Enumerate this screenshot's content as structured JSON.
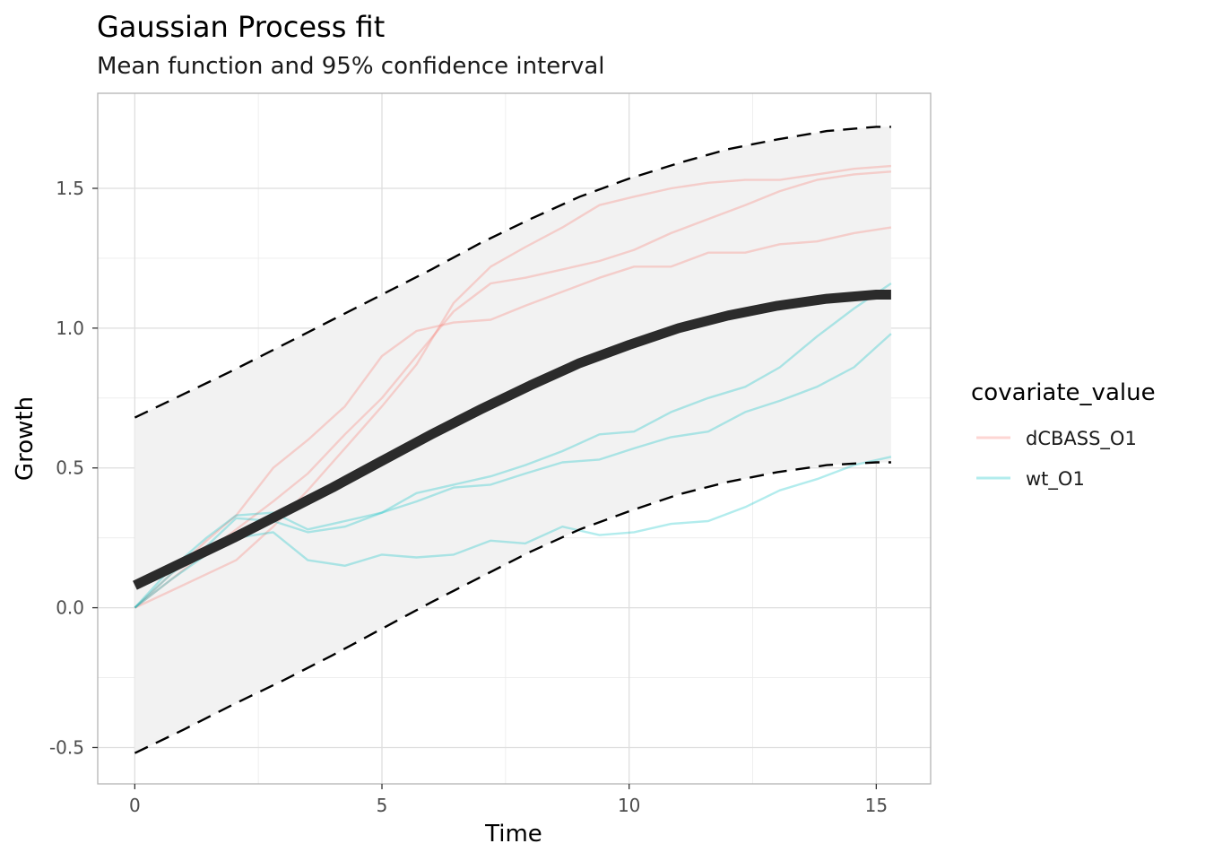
{
  "chart_data": {
    "type": "line",
    "title": "Gaussian Process fit",
    "subtitle": "Mean function and 95% confidence interval",
    "xlabel": "Time",
    "ylabel": "Growth",
    "xlim": [
      -0.75,
      16.1
    ],
    "ylim": [
      -0.63,
      1.84
    ],
    "x_ticks": [
      0,
      5,
      10,
      15
    ],
    "x_tick_labels": [
      "0",
      "5",
      "10",
      "15"
    ],
    "y_ticks": [
      -0.5,
      0.0,
      0.5,
      1.0,
      1.5
    ],
    "y_tick_labels": [
      "-0.5",
      "0.0",
      "0.5",
      "1.0",
      "1.5"
    ],
    "grid": true,
    "legend": {
      "title": "covariate_value",
      "position": "right",
      "entries": [
        {
          "label": "dCBASS_O1",
          "color": "#F8766D"
        },
        {
          "label": "wt_O1",
          "color": "#00BFC4"
        }
      ]
    },
    "colors": {
      "mean": "#2b2b2b",
      "ribbon": "#f2f2f2",
      "bounds": "#000000",
      "dCBASS_O1": "#F8766D",
      "wt_O1": "#00BFC4"
    },
    "mean": {
      "x": [
        0,
        1,
        2,
        3,
        4,
        5,
        6,
        7,
        8,
        9,
        10,
        11,
        12,
        13,
        14,
        15,
        15.3
      ],
      "y": [
        0.08,
        0.165,
        0.25,
        0.34,
        0.43,
        0.525,
        0.62,
        0.71,
        0.795,
        0.875,
        0.94,
        1.0,
        1.045,
        1.08,
        1.105,
        1.12,
        1.12
      ]
    },
    "upper": {
      "x": [
        0,
        1,
        2,
        3,
        4,
        5,
        6,
        7,
        8,
        9,
        10,
        11,
        12,
        13,
        14,
        15,
        15.3
      ],
      "y": [
        0.68,
        0.765,
        0.85,
        0.94,
        1.03,
        1.12,
        1.21,
        1.305,
        1.39,
        1.47,
        1.535,
        1.59,
        1.64,
        1.675,
        1.705,
        1.72,
        1.72
      ]
    },
    "lower": {
      "x": [
        0,
        1,
        2,
        3,
        4,
        5,
        6,
        7,
        8,
        9,
        10,
        11,
        12,
        13,
        14,
        15,
        15.3
      ],
      "y": [
        -0.52,
        -0.435,
        -0.345,
        -0.26,
        -0.17,
        -0.075,
        0.02,
        0.11,
        0.2,
        0.28,
        0.345,
        0.405,
        0.45,
        0.485,
        0.51,
        0.52,
        0.52
      ]
    },
    "series": [
      {
        "group": "dCBASS_O1",
        "x": [
          0,
          0.73,
          1.45,
          2.05,
          2.8,
          3.5,
          4.25,
          5,
          5.7,
          6.45,
          7.2,
          7.9,
          8.65,
          9.4,
          10.1,
          10.85,
          11.6,
          12.35,
          13.05,
          13.8,
          14.55,
          15.3
        ],
        "y": [
          0,
          0.12,
          0.24,
          0.33,
          0.5,
          0.6,
          0.72,
          0.9,
          0.99,
          1.02,
          1.03,
          1.08,
          1.13,
          1.18,
          1.22,
          1.22,
          1.27,
          1.27,
          1.3,
          1.31,
          1.34,
          1.36
        ]
      },
      {
        "group": "dCBASS_O1",
        "x": [
          0,
          0.73,
          1.45,
          2.05,
          2.8,
          3.5,
          4.25,
          5,
          5.7,
          6.45,
          7.2,
          7.9,
          8.65,
          9.4,
          10.1,
          10.85,
          11.6,
          12.35,
          13.05,
          13.8,
          14.55,
          15.3
        ],
        "y": [
          0,
          0.1,
          0.2,
          0.28,
          0.38,
          0.48,
          0.62,
          0.75,
          0.9,
          1.06,
          1.16,
          1.18,
          1.21,
          1.24,
          1.28,
          1.34,
          1.39,
          1.44,
          1.49,
          1.53,
          1.55,
          1.56
        ]
      },
      {
        "group": "dCBASS_O1",
        "x": [
          0,
          0.73,
          1.45,
          2.05,
          2.8,
          3.5,
          4.25,
          5,
          5.7,
          6.45,
          7.2,
          7.9,
          8.65,
          9.4,
          10.1,
          10.85,
          11.6,
          12.35,
          13.05,
          13.8,
          14.55,
          15.3
        ],
        "y": [
          0,
          0.06,
          0.12,
          0.17,
          0.29,
          0.42,
          0.57,
          0.72,
          0.87,
          1.09,
          1.22,
          1.29,
          1.36,
          1.44,
          1.47,
          1.5,
          1.52,
          1.53,
          1.53,
          1.55,
          1.57,
          1.58
        ]
      },
      {
        "group": "wt_O1",
        "x": [
          0,
          0.73,
          1.45,
          2.05,
          2.8,
          3.5,
          4.25,
          5,
          5.7,
          6.45,
          7.2,
          7.9,
          8.65,
          9.4,
          10.1,
          10.85,
          11.6,
          12.35,
          13.05,
          13.8,
          14.55,
          15.3
        ],
        "y": [
          0,
          0.12,
          0.22,
          0.32,
          0.31,
          0.27,
          0.29,
          0.34,
          0.38,
          0.43,
          0.44,
          0.48,
          0.52,
          0.53,
          0.57,
          0.61,
          0.63,
          0.7,
          0.74,
          0.79,
          0.86,
          0.98
        ]
      },
      {
        "group": "wt_O1",
        "x": [
          0,
          0.73,
          1.45,
          2.05,
          2.8,
          3.5,
          4.25,
          5,
          5.7,
          6.45,
          7.2,
          7.9,
          8.65,
          9.4,
          10.1,
          10.85,
          11.6,
          12.35,
          13.05,
          13.8,
          14.55,
          15.3
        ],
        "y": [
          0,
          0.14,
          0.25,
          0.33,
          0.34,
          0.28,
          0.31,
          0.34,
          0.41,
          0.44,
          0.47,
          0.51,
          0.56,
          0.62,
          0.63,
          0.7,
          0.75,
          0.79,
          0.86,
          0.97,
          1.07,
          1.16
        ]
      },
      {
        "group": "wt_O1",
        "x": [
          0,
          0.73,
          1.45,
          2.05,
          2.8,
          3.5,
          4.25,
          5,
          5.7,
          6.45,
          7.2,
          7.9,
          8.65,
          9.4,
          10.1,
          10.85,
          11.6,
          12.35,
          13.05,
          13.8,
          14.55,
          15.3
        ],
        "y": [
          0,
          0.1,
          0.19,
          0.25,
          0.27,
          0.17,
          0.15,
          0.19,
          0.18,
          0.19,
          0.24,
          0.23,
          0.29,
          0.26,
          0.27,
          0.3,
          0.31,
          0.36,
          0.42,
          0.46,
          0.51,
          0.54
        ]
      }
    ]
  }
}
